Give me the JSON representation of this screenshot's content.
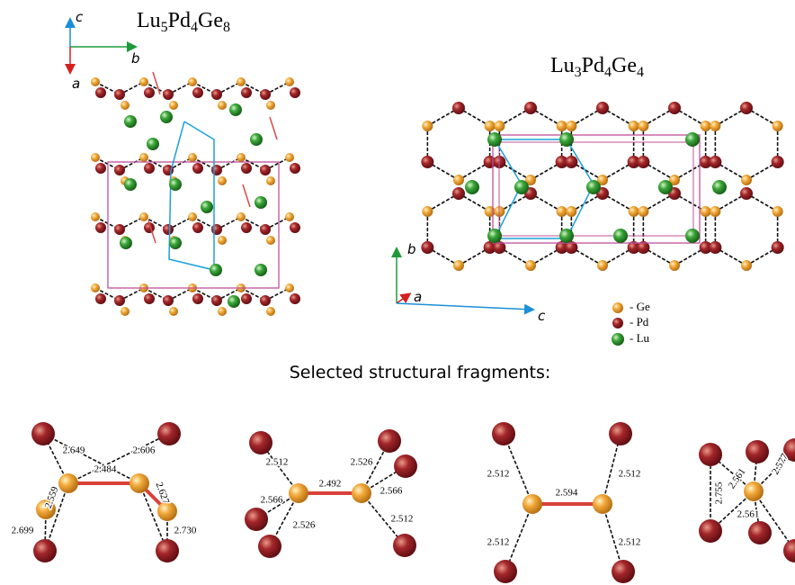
{
  "structures": [
    {
      "formula": "Lu5Pd4Ge8",
      "axes": [
        "c",
        "b",
        "a"
      ]
    },
    {
      "formula": "Lu3Pd4Ge4",
      "axes": [
        "b",
        "a",
        "c"
      ]
    }
  ],
  "legend": [
    "- Ge",
    "- Pd",
    "- Lu"
  ],
  "fragments_title": "Selected structural fragments:",
  "fragments": [
    [
      "2.649",
      "2.606",
      "2.484",
      "2.559",
      "2.627",
      "2.699",
      "2.730"
    ],
    [
      "2.512",
      "2.526",
      "2.492",
      "2.566",
      "2.566",
      "2.526",
      "2.512"
    ],
    [
      "2.512",
      "2.512",
      "2.594",
      "2.512",
      "2.512"
    ],
    [
      "2.755",
      "2.561",
      "2.577",
      "2.561"
    ]
  ]
}
